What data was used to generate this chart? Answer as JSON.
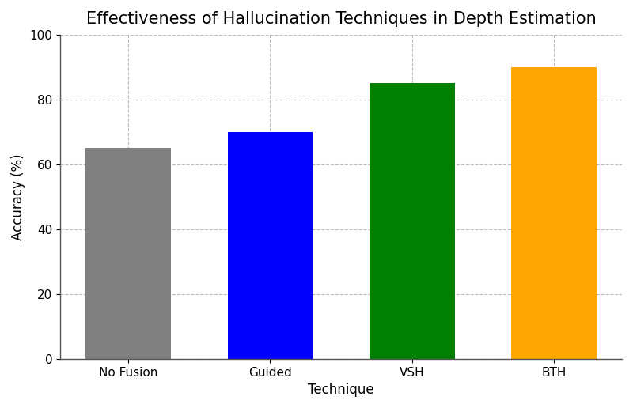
{
  "categories": [
    "No Fusion",
    "Guided",
    "VSH",
    "BTH"
  ],
  "values": [
    65,
    70,
    85,
    90
  ],
  "bar_colors": [
    "#808080",
    "#0000ff",
    "#008000",
    "#ffa500"
  ],
  "title": "Effectiveness of Hallucination Techniques in Depth Estimation",
  "xlabel": "Technique",
  "ylabel": "Accuracy (%)",
  "ylim": [
    0,
    100
  ],
  "yticks": [
    0,
    20,
    40,
    60,
    80,
    100
  ],
  "title_fontsize": 15,
  "axis_label_fontsize": 12,
  "tick_fontsize": 11,
  "background_color": "#ffffff",
  "grid_color": "#aaaaaa",
  "bar_width": 0.6
}
